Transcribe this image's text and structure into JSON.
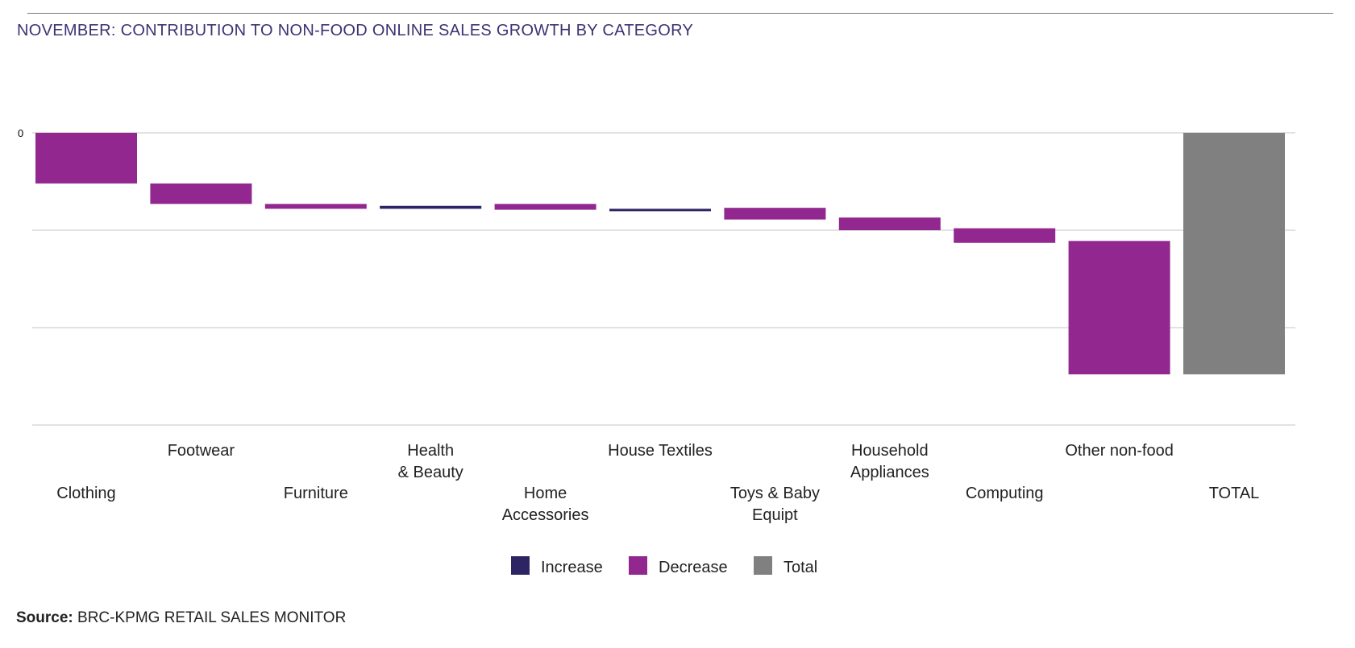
{
  "title": "NOVEMBER: CONTRIBUTION TO NON-FOOD ONLINE SALES GROWTH BY CATEGORY",
  "source": {
    "label": "Source:",
    "text": "BRC-KPMG RETAIL SALES MONITOR"
  },
  "colors": {
    "increase": "#2d2463",
    "decrease": "#92278f",
    "total": "#808080",
    "grid": "#d9d9d9"
  },
  "chart_data": {
    "type": "bar",
    "subtype": "waterfall",
    "title": "NOVEMBER: CONTRIBUTION TO NON-FOOD ONLINE SALES GROWTH BY CATEGORY",
    "xlabel": "",
    "ylabel": "",
    "y_tick_labels": [
      "0"
    ],
    "ylim": [
      -3,
      0
    ],
    "grid": true,
    "legend_placement": "bottom",
    "legend": [
      {
        "key": "increase",
        "label": "Increase"
      },
      {
        "key": "decrease",
        "label": "Decrease"
      },
      {
        "key": "total",
        "label": "Total"
      }
    ],
    "categories": [
      {
        "lines": [
          "Clothing"
        ],
        "type": "decrease",
        "start": 0,
        "end": -0.52
      },
      {
        "lines": [
          "Footwear"
        ],
        "type": "decrease",
        "start": -0.52,
        "end": -0.73
      },
      {
        "lines": [
          "Furniture"
        ],
        "type": "decrease",
        "start": -0.73,
        "end": -0.78
      },
      {
        "lines": [
          "Health",
          "& Beauty"
        ],
        "type": "increase",
        "start": -0.78,
        "end": -0.75
      },
      {
        "lines": [
          "Home",
          "Accessories"
        ],
        "type": "decrease",
        "start": -0.73,
        "end": -0.79
      },
      {
        "lines": [
          "House Textiles"
        ],
        "type": "increase",
        "start": -0.79,
        "end": -0.78
      },
      {
        "lines": [
          "Toys & Baby",
          "Equipt"
        ],
        "type": "decrease",
        "start": -0.77,
        "end": -0.89
      },
      {
        "lines": [
          "Household",
          "Appliances"
        ],
        "type": "decrease",
        "start": -0.87,
        "end": -1.0
      },
      {
        "lines": [
          "Computing"
        ],
        "type": "decrease",
        "start": -0.98,
        "end": -1.13
      },
      {
        "lines": [
          "Other non-food"
        ],
        "type": "decrease",
        "start": -1.11,
        "end": -2.48
      },
      {
        "lines": [
          "TOTAL"
        ],
        "type": "total",
        "start": 0,
        "end": -2.48
      }
    ]
  }
}
